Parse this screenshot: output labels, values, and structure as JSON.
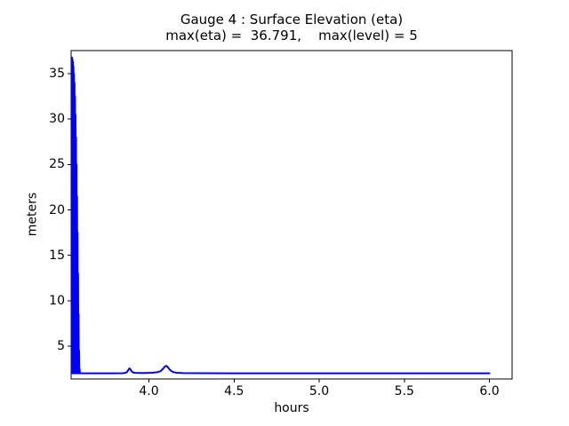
{
  "chart_data": {
    "type": "line",
    "title": "Gauge 4 : Surface Elevation (eta)",
    "subtitle": "max(eta) =  36.791,    max(level) = 5",
    "xlabel": "hours",
    "ylabel": "meters",
    "max_eta": 36.791,
    "max_level": 5,
    "xlim": [
      3.543,
      6.133
    ],
    "ylim": [
      1.38,
      37.55
    ],
    "grid": false,
    "legend": false,
    "background": "#ffffff",
    "spine_color": "#000000",
    "line_color": "#0000ff",
    "line_width": 2,
    "xticks": {
      "values": [
        4.0,
        4.5,
        5.0,
        5.5,
        6.0
      ],
      "labels": [
        "4.0",
        "4.5",
        "5.0",
        "5.5",
        "6.0"
      ]
    },
    "yticks": {
      "values": [
        5,
        10,
        15,
        20,
        25,
        30,
        35
      ],
      "labels": [
        "5",
        "10",
        "15",
        "20",
        "25",
        "30",
        "35"
      ]
    },
    "series": [
      {
        "name": "surface-elevation-eta",
        "x": [
          3.546,
          3.548,
          3.5495,
          3.551,
          3.5525,
          3.554,
          3.5555,
          3.557,
          3.5585,
          3.56,
          3.5615,
          3.563,
          3.5645,
          3.566,
          3.5675,
          3.569,
          3.5705,
          3.572,
          3.5735,
          3.575,
          3.5765,
          3.578,
          3.5795,
          3.581,
          3.5825,
          3.584,
          3.5855,
          3.587,
          3.5885,
          3.59,
          3.5915,
          3.593,
          3.595,
          3.62,
          3.7,
          3.8,
          3.845,
          3.862,
          3.872,
          3.879,
          3.885,
          3.891,
          3.898,
          3.906,
          3.92,
          3.95,
          3.98,
          4.02,
          4.05,
          4.07,
          4.085,
          4.095,
          4.103,
          4.112,
          4.125,
          4.14,
          4.16,
          4.2,
          4.3,
          4.5,
          4.75,
          5.0,
          5.25,
          5.5,
          5.75,
          6.0
        ],
        "y": [
          2.2,
          36.791,
          2.0,
          36.6,
          2.0,
          36.3,
          2.0,
          35.8,
          2.0,
          35.0,
          2.0,
          34.0,
          2.0,
          32.5,
          2.0,
          30.5,
          2.0,
          28.0,
          2.0,
          25.0,
          2.0,
          21.5,
          2.0,
          17.5,
          2.0,
          13.0,
          2.0,
          8.5,
          2.0,
          4.5,
          2.0,
          2.5,
          2.0,
          2.0,
          2.0,
          2.0,
          2.02,
          2.05,
          2.15,
          2.38,
          2.55,
          2.45,
          2.22,
          2.1,
          2.05,
          2.04,
          2.04,
          2.06,
          2.12,
          2.25,
          2.55,
          2.78,
          2.82,
          2.65,
          2.35,
          2.15,
          2.07,
          2.03,
          2.01,
          2.0,
          2.0,
          2.0,
          2.0,
          2.0,
          2.0,
          2.0
        ]
      }
    ]
  }
}
